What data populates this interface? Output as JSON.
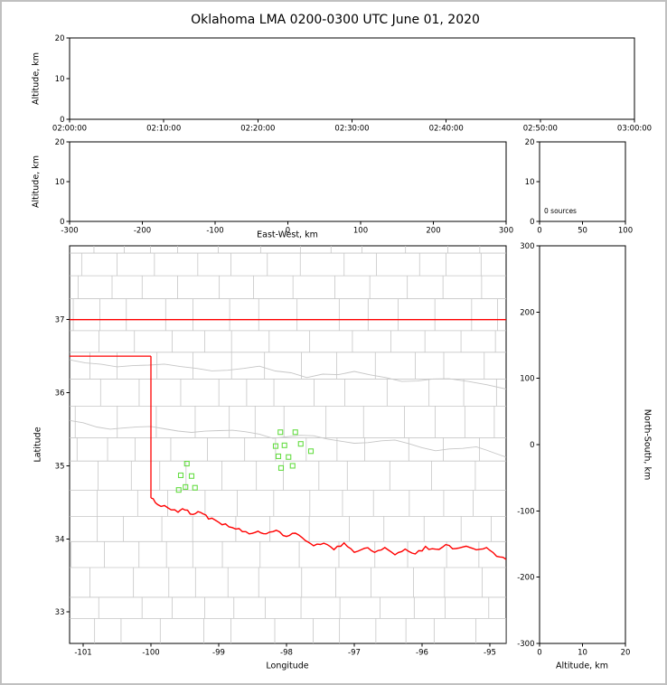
{
  "title": "Oklahoma LMA 0200-0300 UTC June 01, 2020",
  "labels": {
    "altitude_km": "Altitude, km",
    "east_west_km": "East-West, km",
    "north_south_km": "North-South, km",
    "longitude": "Longitude",
    "latitude": "Latitude",
    "sources_annotation": "0 sources"
  },
  "colors": {
    "frame_border": "#c0c0c0",
    "axes": "#000000",
    "state_border": "#ff0000",
    "county_lines": "#c6c6c6",
    "station_marker": "#66dd44",
    "background": "#ffffff"
  },
  "chart_data": [
    {
      "id": "time_height",
      "type": "scatter",
      "xlabel": "",
      "ylabel": "Altitude, km",
      "xtick_labels": [
        "02:00:00",
        "02:10:00",
        "02:20:00",
        "02:30:00",
        "02:40:00",
        "02:50:00",
        "03:00:00"
      ],
      "xtick_values": [
        0,
        600,
        1200,
        1800,
        2400,
        3000,
        3600
      ],
      "xlim": [
        0,
        3600
      ],
      "yticks": [
        0,
        10,
        20
      ],
      "ylim": [
        0,
        20
      ],
      "points": []
    },
    {
      "id": "ew_height",
      "type": "scatter",
      "xlabel": "East-West, km",
      "ylabel": "Altitude, km",
      "xtick_values": [
        -300,
        -200,
        -100,
        0,
        100,
        200,
        300
      ],
      "xtick_labels": [
        "-300",
        "-200",
        "-100",
        "0",
        "100",
        "200",
        "300"
      ],
      "xlim": [
        -300,
        300
      ],
      "yticks": [
        0,
        10,
        20
      ],
      "ylim": [
        0,
        20
      ],
      "points": []
    },
    {
      "id": "alt_histogram",
      "type": "line",
      "annotation": "0 sources",
      "xtick_values": [
        0,
        50,
        100
      ],
      "xtick_labels": [
        "0",
        "50",
        "100"
      ],
      "xlim": [
        0,
        100
      ],
      "yticks": [
        0,
        10,
        20
      ],
      "ylim": [
        0,
        20
      ],
      "points": []
    },
    {
      "id": "plan_map",
      "type": "map",
      "xlabel": "Longitude",
      "ylabel": "Latitude",
      "xtick_values": [
        -101,
        -100,
        -99,
        -98,
        -97,
        -96,
        -95
      ],
      "xtick_labels": [
        "-101",
        "-100",
        "-99",
        "-98",
        "-97",
        "-96",
        "-95"
      ],
      "xlim": [
        -101.2,
        -94.76
      ],
      "yticks": [
        33,
        34,
        35,
        36,
        37
      ],
      "ylim": [
        32.57,
        38.01
      ],
      "county_color": "#c6c6c6",
      "state_border_color": "#ff0000",
      "station_color": "#66dd44",
      "stations": [
        [
          -98.09,
          35.46
        ],
        [
          -97.87,
          35.46
        ],
        [
          -98.16,
          35.27
        ],
        [
          -98.03,
          35.28
        ],
        [
          -97.79,
          35.3
        ],
        [
          -98.12,
          35.13
        ],
        [
          -97.97,
          35.12
        ],
        [
          -98.08,
          34.97
        ],
        [
          -97.91,
          35.0
        ],
        [
          -97.64,
          35.2
        ],
        [
          -99.47,
          35.03
        ],
        [
          -99.56,
          34.87
        ],
        [
          -99.4,
          34.86
        ],
        [
          -99.49,
          34.71
        ],
        [
          -99.35,
          34.7
        ],
        [
          -99.59,
          34.67
        ]
      ],
      "state_border": {
        "north_lat": 37.0,
        "panhandle_south_lat": 36.5,
        "east_panhandle_lon": -100.0,
        "red_river": [
          [
            -100.0,
            34.56
          ],
          [
            -99.9,
            34.48
          ],
          [
            -99.75,
            34.42
          ],
          [
            -99.6,
            34.37
          ],
          [
            -99.5,
            34.41
          ],
          [
            -99.38,
            34.33
          ],
          [
            -99.27,
            34.38
          ],
          [
            -99.15,
            34.29
          ],
          [
            -99.0,
            34.23
          ],
          [
            -98.85,
            34.17
          ],
          [
            -98.7,
            34.13
          ],
          [
            -98.55,
            34.07
          ],
          [
            -98.42,
            34.12
          ],
          [
            -98.3,
            34.06
          ],
          [
            -98.15,
            34.11
          ],
          [
            -98.0,
            34.04
          ],
          [
            -97.87,
            34.09
          ],
          [
            -97.72,
            33.97
          ],
          [
            -97.6,
            33.9
          ],
          [
            -97.45,
            33.94
          ],
          [
            -97.3,
            33.87
          ],
          [
            -97.15,
            33.93
          ],
          [
            -97.0,
            33.82
          ],
          [
            -96.85,
            33.89
          ],
          [
            -96.7,
            33.82
          ],
          [
            -96.55,
            33.87
          ],
          [
            -96.4,
            33.8
          ],
          [
            -96.25,
            33.86
          ],
          [
            -96.1,
            33.8
          ],
          [
            -95.95,
            33.88
          ],
          [
            -95.8,
            33.85
          ],
          [
            -95.65,
            33.91
          ],
          [
            -95.5,
            33.86
          ],
          [
            -95.35,
            33.9
          ],
          [
            -95.2,
            33.85
          ],
          [
            -95.05,
            33.89
          ],
          [
            -94.9,
            33.78
          ],
          [
            -94.76,
            33.72
          ]
        ]
      },
      "rivers": [
        [
          [
            -101.2,
            35.62
          ],
          [
            -100.6,
            35.5
          ],
          [
            -100.0,
            35.55
          ],
          [
            -99.4,
            35.45
          ],
          [
            -98.8,
            35.5
          ],
          [
            -98.2,
            35.38
          ],
          [
            -97.6,
            35.42
          ],
          [
            -97.0,
            35.3
          ],
          [
            -96.4,
            35.35
          ],
          [
            -95.8,
            35.2
          ],
          [
            -95.2,
            35.25
          ],
          [
            -94.76,
            35.12
          ]
        ],
        [
          [
            -101.2,
            36.45
          ],
          [
            -100.5,
            36.35
          ],
          [
            -99.8,
            36.4
          ],
          [
            -99.1,
            36.3
          ],
          [
            -98.4,
            36.35
          ],
          [
            -97.7,
            36.22
          ],
          [
            -97.0,
            36.28
          ],
          [
            -96.3,
            36.15
          ],
          [
            -95.6,
            36.2
          ],
          [
            -94.76,
            36.05
          ]
        ]
      ]
    },
    {
      "id": "ns_height",
      "type": "scatter",
      "xlabel": "Altitude, km",
      "ylabel": "North-South, km",
      "xtick_values": [
        0,
        10,
        20
      ],
      "xtick_labels": [
        "0",
        "10",
        "20"
      ],
      "xlim": [
        0,
        20
      ],
      "yticks": [
        300,
        200,
        100,
        0,
        -100,
        -200,
        -300
      ],
      "ylim": [
        -300,
        300
      ],
      "points": []
    }
  ]
}
